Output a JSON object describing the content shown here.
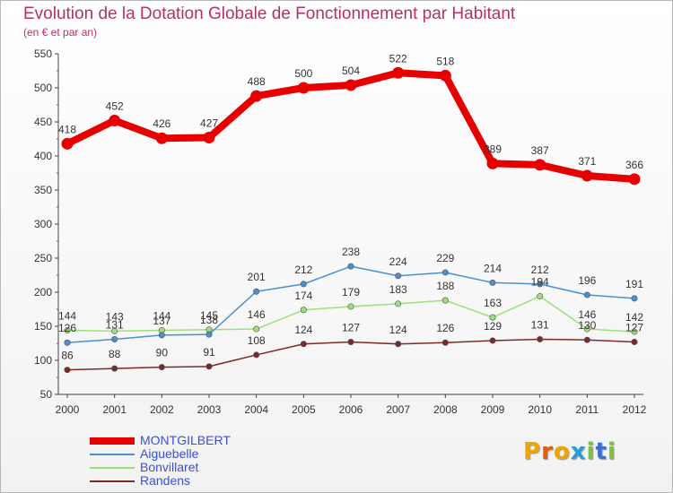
{
  "title": "Evolution de la Dotation Globale de Fonctionnement par Habitant",
  "subtitle": "(en € et par an)",
  "logo": {
    "letters": [
      "P",
      "r",
      "o",
      "x",
      "i",
      "t",
      "i"
    ],
    "colors": [
      "#f2a400",
      "#e65c00",
      "#f2a400",
      "#2a9dd9",
      "#7cc242",
      "#3b6fd6",
      "#7cc242"
    ]
  },
  "chart_data": {
    "type": "line",
    "x": [
      "2000",
      "2001",
      "2002",
      "2003",
      "2004",
      "2005",
      "2006",
      "2007",
      "2008",
      "2009",
      "2010",
      "2011",
      "2012"
    ],
    "ylim": [
      50,
      550
    ],
    "yticks": [
      50,
      100,
      150,
      200,
      250,
      300,
      350,
      400,
      450,
      500,
      550
    ],
    "grid": false,
    "legend_position": "bottom-left",
    "series": [
      {
        "name": "MONTGILBERT",
        "color": "#e60000",
        "values": [
          418,
          452,
          426,
          427,
          488,
          500,
          504,
          522,
          518,
          389,
          387,
          371,
          366
        ]
      },
      {
        "name": "Aiguebelle",
        "color": "#4a8fd0",
        "values": [
          126,
          131,
          137,
          138,
          201,
          212,
          238,
          224,
          229,
          214,
          212,
          196,
          191
        ]
      },
      {
        "name": "Bonvillaret",
        "color": "#9be07a",
        "values": [
          144,
          143,
          144,
          145,
          146,
          174,
          179,
          183,
          188,
          163,
          194,
          146,
          142
        ]
      },
      {
        "name": "Randens",
        "color": "#7a2a2a",
        "values": [
          86,
          88,
          90,
          91,
          108,
          124,
          127,
          124,
          126,
          129,
          131,
          130,
          127
        ]
      }
    ]
  }
}
